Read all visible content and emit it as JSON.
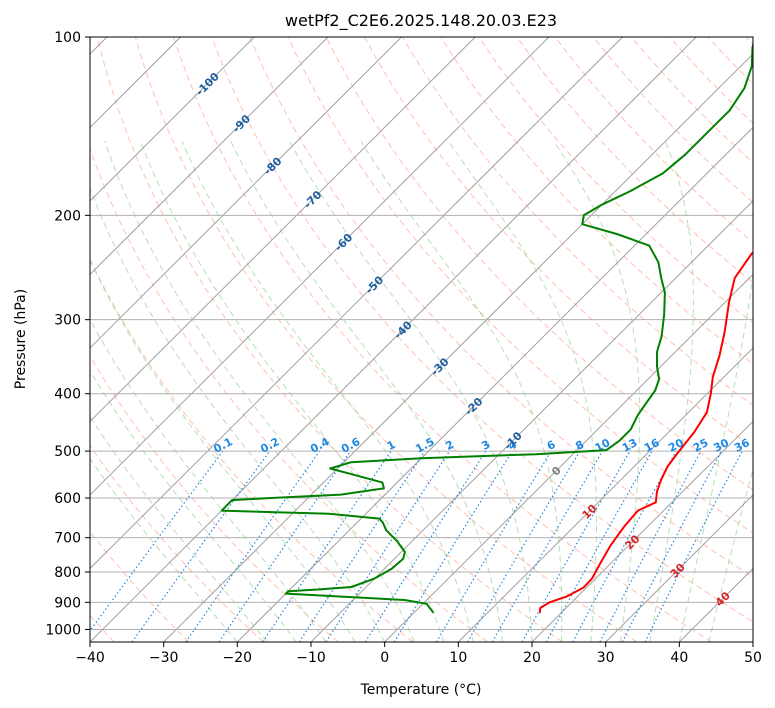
{
  "chart_data": {
    "type": "line",
    "subtype": "skew-T log-P diagram",
    "title": "wetPf2_C2E6.2025.148.20.03.E23",
    "xlabel": "Temperature (°C)",
    "ylabel": "Pressure (hPa)",
    "xlim": [
      -40,
      50
    ],
    "ylim": [
      1050,
      100
    ],
    "y_scale": "log",
    "x_ticks": [
      -40,
      -30,
      -20,
      -10,
      0,
      10,
      20,
      30,
      40,
      50
    ],
    "y_ticks": [
      100,
      200,
      300,
      400,
      500,
      600,
      700,
      800,
      900,
      1000
    ],
    "grid": true,
    "background_lines": {
      "isotherm_color": "#a0a0a0",
      "dry_adiabat_color": "#ffab91",
      "moist_adiabat_color": "#a5d6a7",
      "mixing_ratio_color": "#1e88e5"
    },
    "isotherm_labels": [
      {
        "label": "-100",
        "t": -100,
        "p": 120
      },
      {
        "label": "-90",
        "t": -90,
        "p": 140
      },
      {
        "label": "-80",
        "t": -80,
        "p": 165
      },
      {
        "label": "-70",
        "t": -70,
        "p": 188
      },
      {
        "label": "-60",
        "t": -60,
        "p": 222
      },
      {
        "label": "-50",
        "t": -50,
        "p": 262
      },
      {
        "label": "-40",
        "t": -40,
        "p": 312
      },
      {
        "label": "-30",
        "t": -30,
        "p": 360
      },
      {
        "label": "-20",
        "t": -20,
        "p": 420
      },
      {
        "label": "-10",
        "t": -10,
        "p": 480
      },
      {
        "label": "0",
        "t": 0,
        "p": 540
      }
    ],
    "dry_adiabat_labels": [
      {
        "label": "10",
        "t": 10,
        "p": 632
      },
      {
        "label": "20",
        "t": 20,
        "p": 712
      },
      {
        "label": "30",
        "t": 30,
        "p": 795
      },
      {
        "label": "40",
        "t": 40,
        "p": 888
      }
    ],
    "mixing_ratio_labels": [
      "0.1",
      "0.2",
      "0.4",
      "0.6",
      "1",
      "1.5",
      "2",
      "3",
      "4",
      "6",
      "8",
      "10",
      "13",
      "16",
      "20",
      "25",
      "30",
      "36"
    ],
    "series": [
      {
        "color": "#ff0000",
        "points": [
          {
            "t": 17,
            "p": 935
          },
          {
            "t": 16.5,
            "p": 920
          },
          {
            "t": 17,
            "p": 900
          },
          {
            "t": 18.5,
            "p": 880
          },
          {
            "t": 19.6,
            "p": 850
          },
          {
            "t": 19.5,
            "p": 820
          },
          {
            "t": 18.5,
            "p": 770
          },
          {
            "t": 17.5,
            "p": 720
          },
          {
            "t": 16.8,
            "p": 670
          },
          {
            "t": 16.5,
            "p": 630
          },
          {
            "t": 17.8,
            "p": 610
          },
          {
            "t": 16.5,
            "p": 585
          },
          {
            "t": 15.5,
            "p": 560
          },
          {
            "t": 14.5,
            "p": 530
          },
          {
            "t": 14,
            "p": 500
          },
          {
            "t": 13.5,
            "p": 465
          },
          {
            "t": 12.5,
            "p": 430
          },
          {
            "t": 10.5,
            "p": 400
          },
          {
            "t": 8.5,
            "p": 375
          },
          {
            "t": 6.5,
            "p": 345
          },
          {
            "t": 4,
            "p": 315
          },
          {
            "t": 0.5,
            "p": 280
          },
          {
            "t": -2,
            "p": 255
          },
          {
            "t": -3,
            "p": 232
          },
          {
            "t": -2,
            "p": 222
          },
          {
            "t": -1,
            "p": 210
          },
          {
            "t": -1.5,
            "p": 195
          },
          {
            "t": -3.5,
            "p": 178
          },
          {
            "t": -5.5,
            "p": 160
          },
          {
            "t": -6.5,
            "p": 145
          },
          {
            "t": -8,
            "p": 130
          },
          {
            "t": -9.5,
            "p": 118
          },
          {
            "t": -12,
            "p": 107
          },
          {
            "t": -14,
            "p": 100
          }
        ]
      },
      {
        "color": "#008000",
        "points": [
          {
            "t": 2.5,
            "p": 935
          },
          {
            "t": 1.5,
            "p": 920
          },
          {
            "t": 0.5,
            "p": 905
          },
          {
            "t": -3,
            "p": 892
          },
          {
            "t": -12,
            "p": 880
          },
          {
            "t": -20,
            "p": 870
          },
          {
            "t": -20,
            "p": 862
          },
          {
            "t": -16,
            "p": 856
          },
          {
            "t": -12,
            "p": 848
          },
          {
            "t": -10,
            "p": 820
          },
          {
            "t": -9,
            "p": 790
          },
          {
            "t": -8.8,
            "p": 760
          },
          {
            "t": -9.5,
            "p": 740
          },
          {
            "t": -12,
            "p": 710
          },
          {
            "t": -15,
            "p": 680
          },
          {
            "t": -16.5,
            "p": 660
          },
          {
            "t": -17.5,
            "p": 650
          },
          {
            "t": -25,
            "p": 638
          },
          {
            "t": -40,
            "p": 630
          },
          {
            "t": -40,
            "p": 605
          },
          {
            "t": -35,
            "p": 600
          },
          {
            "t": -26,
            "p": 592
          },
          {
            "t": -21,
            "p": 578
          },
          {
            "t": -22,
            "p": 565
          },
          {
            "t": -27,
            "p": 548
          },
          {
            "t": -31,
            "p": 535
          },
          {
            "t": -29,
            "p": 522
          },
          {
            "t": -20,
            "p": 514
          },
          {
            "t": -5,
            "p": 506
          },
          {
            "t": 4,
            "p": 498
          },
          {
            "t": 4.5,
            "p": 480
          },
          {
            "t": 4.5,
            "p": 460
          },
          {
            "t": 3.5,
            "p": 435
          },
          {
            "t": 3,
            "p": 415
          },
          {
            "t": 2.5,
            "p": 395
          },
          {
            "t": 1.5,
            "p": 378
          },
          {
            "t": -0.5,
            "p": 360
          },
          {
            "t": -2.5,
            "p": 340
          },
          {
            "t": -4,
            "p": 320
          },
          {
            "t": -6.5,
            "p": 295
          },
          {
            "t": -9.5,
            "p": 270
          },
          {
            "t": -12,
            "p": 255
          },
          {
            "t": -14.5,
            "p": 240
          },
          {
            "t": -18,
            "p": 225
          },
          {
            "t": -24,
            "p": 215
          },
          {
            "t": -30,
            "p": 207
          },
          {
            "t": -31,
            "p": 200
          },
          {
            "t": -30,
            "p": 192
          },
          {
            "t": -28,
            "p": 182
          },
          {
            "t": -26,
            "p": 170
          },
          {
            "t": -25.5,
            "p": 158
          },
          {
            "t": -25.5,
            "p": 145
          },
          {
            "t": -25.5,
            "p": 133
          },
          {
            "t": -26.5,
            "p": 122
          },
          {
            "t": -28.5,
            "p": 112
          },
          {
            "t": -31,
            "p": 104
          },
          {
            "t": -32,
            "p": 100
          }
        ]
      }
    ]
  }
}
